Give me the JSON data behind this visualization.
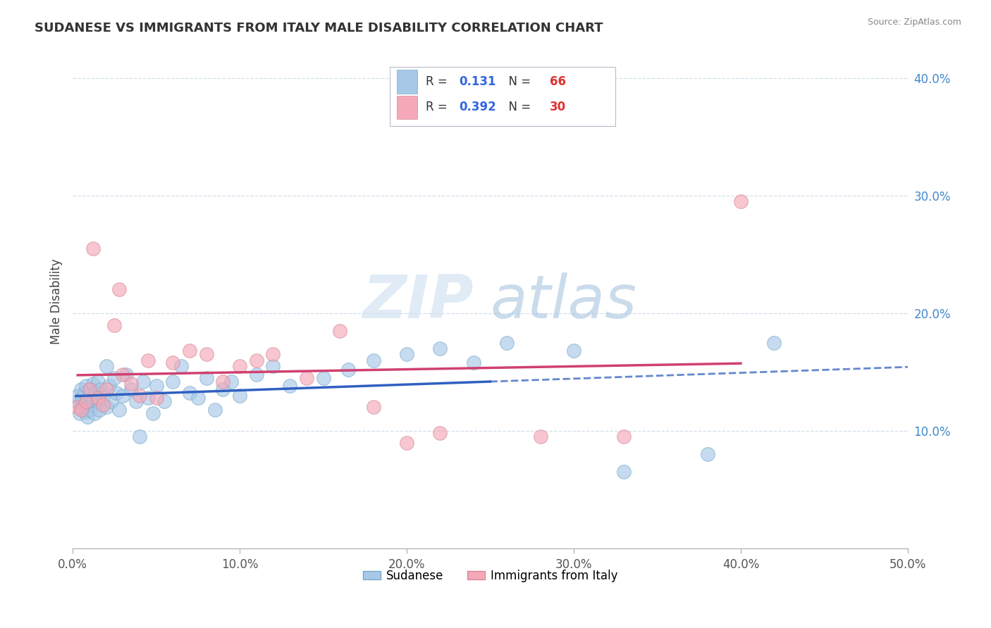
{
  "title": "SUDANESE VS IMMIGRANTS FROM ITALY MALE DISABILITY CORRELATION CHART",
  "source": "Source: ZipAtlas.com",
  "ylabel": "Male Disability",
  "xlim": [
    0.0,
    0.5
  ],
  "ylim": [
    0.0,
    0.42
  ],
  "xticks": [
    0.0,
    0.1,
    0.2,
    0.3,
    0.4,
    0.5
  ],
  "yticks_right": [
    0.1,
    0.2,
    0.3,
    0.4
  ],
  "ytick_labels_right": [
    "10.0%",
    "20.0%",
    "30.0%",
    "40.0%"
  ],
  "xtick_labels": [
    "0.0%",
    "10.0%",
    "20.0%",
    "30.0%",
    "40.0%",
    "50.0%"
  ],
  "series1_color": "#A8C8E8",
  "series1_edge": "#7AAAC8",
  "series2_color": "#F4A8B8",
  "series2_edge": "#D88898",
  "line1_color": "#3060C0",
  "line2_color": "#D04070",
  "r1": 0.131,
  "n1": 66,
  "r2": 0.392,
  "n2": 30,
  "watermark": "ZIPatlas",
  "legend_label1": "Sudanese",
  "legend_label2": "Immigrants from Italy",
  "sudanese_x": [
    0.002,
    0.003,
    0.004,
    0.005,
    0.005,
    0.006,
    0.006,
    0.007,
    0.007,
    0.008,
    0.008,
    0.009,
    0.009,
    0.01,
    0.01,
    0.011,
    0.011,
    0.012,
    0.012,
    0.013,
    0.014,
    0.015,
    0.015,
    0.016,
    0.017,
    0.018,
    0.02,
    0.02,
    0.022,
    0.023,
    0.025,
    0.026,
    0.028,
    0.03,
    0.032,
    0.035,
    0.038,
    0.04,
    0.042,
    0.045,
    0.048,
    0.05,
    0.055,
    0.06,
    0.065,
    0.07,
    0.075,
    0.08,
    0.085,
    0.09,
    0.095,
    0.1,
    0.11,
    0.12,
    0.13,
    0.15,
    0.165,
    0.18,
    0.2,
    0.22,
    0.24,
    0.26,
    0.3,
    0.33,
    0.38,
    0.42
  ],
  "sudanese_y": [
    0.125,
    0.13,
    0.115,
    0.12,
    0.135,
    0.118,
    0.128,
    0.122,
    0.132,
    0.116,
    0.138,
    0.125,
    0.112,
    0.13,
    0.118,
    0.135,
    0.122,
    0.128,
    0.14,
    0.115,
    0.132,
    0.125,
    0.142,
    0.118,
    0.135,
    0.128,
    0.12,
    0.155,
    0.138,
    0.125,
    0.145,
    0.132,
    0.118,
    0.13,
    0.148,
    0.135,
    0.125,
    0.095,
    0.142,
    0.128,
    0.115,
    0.138,
    0.125,
    0.142,
    0.155,
    0.132,
    0.128,
    0.145,
    0.118,
    0.135,
    0.142,
    0.13,
    0.148,
    0.155,
    0.138,
    0.145,
    0.152,
    0.16,
    0.165,
    0.17,
    0.158,
    0.175,
    0.168,
    0.065,
    0.08,
    0.175
  ],
  "italy_x": [
    0.003,
    0.005,
    0.008,
    0.01,
    0.012,
    0.015,
    0.018,
    0.02,
    0.025,
    0.028,
    0.03,
    0.035,
    0.04,
    0.045,
    0.05,
    0.06,
    0.07,
    0.08,
    0.09,
    0.1,
    0.11,
    0.12,
    0.14,
    0.16,
    0.18,
    0.2,
    0.22,
    0.28,
    0.33,
    0.4
  ],
  "italy_y": [
    0.12,
    0.118,
    0.125,
    0.135,
    0.255,
    0.128,
    0.122,
    0.135,
    0.19,
    0.22,
    0.148,
    0.14,
    0.13,
    0.16,
    0.128,
    0.158,
    0.168,
    0.165,
    0.142,
    0.155,
    0.16,
    0.165,
    0.145,
    0.185,
    0.12,
    0.09,
    0.098,
    0.095,
    0.095,
    0.295
  ]
}
